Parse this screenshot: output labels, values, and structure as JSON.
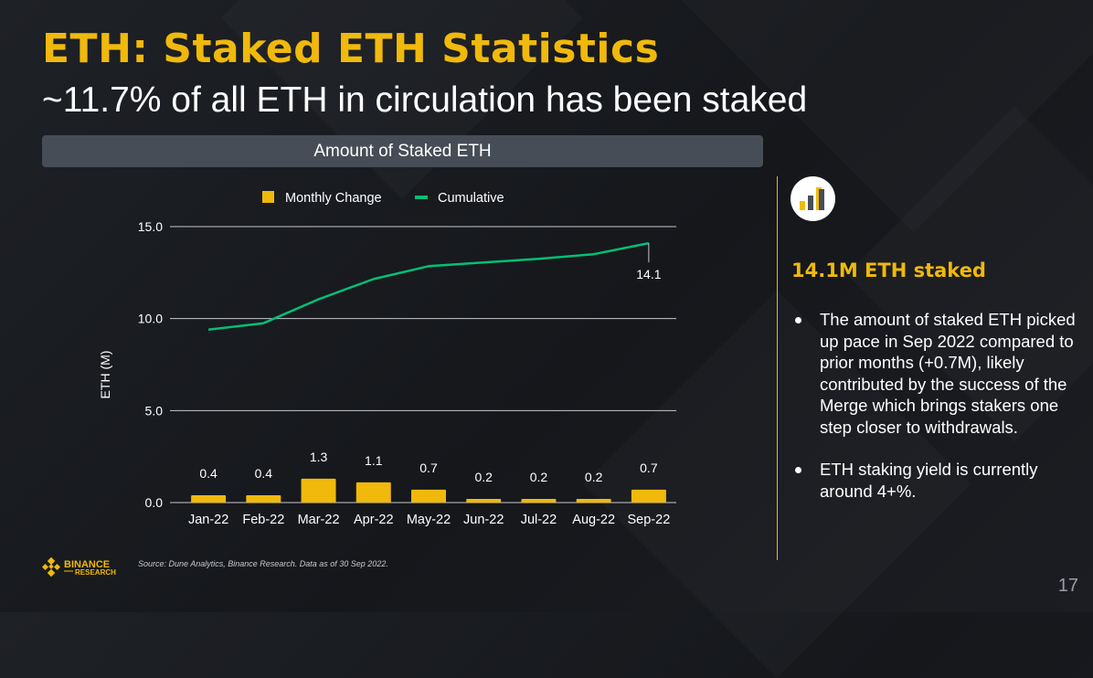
{
  "slide": {
    "title": "ETH: Staked ETH Statistics",
    "subtitle": "~11.7% of all ETH in circulation has been staked",
    "chart_banner": "Amount of Staked ETH",
    "page_number": "17",
    "source": "Source: Dune Analytics, Binance Research. Data as of 30 Sep 2022.",
    "brand": {
      "name": "BINANCE",
      "sub": "RESEARCH",
      "icon": "binance-diamond-icon"
    }
  },
  "side_panel": {
    "icon": "bar-chart-icon",
    "headline": "14.1M ETH staked",
    "bullets": [
      "The amount of staked ETH picked up pace in Sep 2022 compared to prior months (+0.7M), likely contributed by the success of the Merge which brings stakers one step closer to withdrawals.",
      "ETH staking yield is currently around 4+%."
    ]
  },
  "colors": {
    "accent": "#f0b90b",
    "line": "#02c076",
    "grid": "#c7c9cc",
    "banner": "#474d57",
    "background": "#1a1c20"
  },
  "chart_data": {
    "type": "bar+line",
    "title": "Amount of Staked ETH",
    "xlabel": "",
    "ylabel": "ETH (M)",
    "ylim": [
      0,
      15
    ],
    "yticks": [
      0,
      5,
      10,
      15
    ],
    "ytick_labels": [
      "0.0",
      "5.0",
      "10.0",
      "15.0"
    ],
    "grid": true,
    "legend_position": "top",
    "categories": [
      "Jan-22",
      "Feb-22",
      "Mar-22",
      "Apr-22",
      "May-22",
      "Jun-22",
      "Jul-22",
      "Aug-22",
      "Sep-22"
    ],
    "series": [
      {
        "name": "Monthly Change",
        "type": "bar",
        "color": "#f0b90b",
        "values": [
          0.4,
          0.4,
          1.3,
          1.1,
          0.7,
          0.2,
          0.2,
          0.2,
          0.7
        ],
        "labels": [
          "0.4",
          "0.4",
          "1.3",
          "1.1",
          "0.7",
          "0.2",
          "0.2",
          "0.2",
          "0.7"
        ]
      },
      {
        "name": "Cumulative",
        "type": "line",
        "color": "#02c076",
        "values": [
          9.4,
          9.75,
          11.05,
          12.15,
          12.85,
          13.05,
          13.25,
          13.5,
          14.1
        ],
        "annotation": {
          "index": 8,
          "label": "14.1"
        }
      }
    ]
  }
}
